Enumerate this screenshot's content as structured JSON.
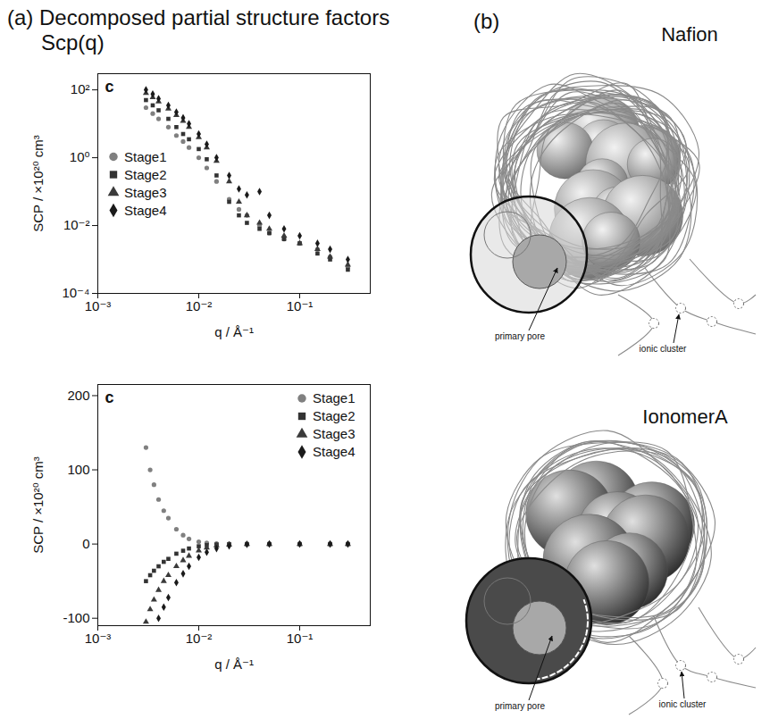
{
  "figure": {
    "title": "(a) Decomposed partial structure factors Scp(q)",
    "panel_b": {
      "label": "(b)",
      "diagrams": [
        {
          "name": "Nafion",
          "primary_pore": "primary pore",
          "ionic_cluster": "ionic cluster"
        },
        {
          "name": "IonomerA",
          "primary_pore": "primary pore",
          "ionic_cluster": "ionic cluster"
        }
      ]
    }
  },
  "chart_data": [
    {
      "type": "scatter",
      "title": "c",
      "log": true,
      "grid": false,
      "legend": "left",
      "x_label": "q / Å⁻¹",
      "y_label": "SCP / ×10²⁰ cm³",
      "xlim": [
        0.001,
        0.5
      ],
      "ylim": [
        0.0001,
        300
      ],
      "xticks": [
        {
          "value": 0.001,
          "label": "10⁻³"
        },
        {
          "value": 0.01,
          "label": "10⁻²"
        },
        {
          "value": 0.1,
          "label": "10⁻¹"
        }
      ],
      "yticks": [
        {
          "value": 0.0001,
          "label": "10⁻⁴"
        },
        {
          "value": 0.01,
          "label": "10⁻²"
        },
        {
          "value": 1,
          "label": "10⁰"
        },
        {
          "value": 100,
          "label": "10²"
        }
      ],
      "series": [
        {
          "name": "Stage1",
          "color": "#808080",
          "marker": "circle",
          "x": [
            0.003,
            0.0035,
            0.004,
            0.005,
            0.006,
            0.007,
            0.008,
            0.01,
            0.012,
            0.015,
            0.02,
            0.025,
            0.03,
            0.04,
            0.05,
            0.07,
            0.1,
            0.15,
            0.2,
            0.3
          ],
          "values": [
            30,
            20,
            14,
            8,
            4.5,
            3,
            2,
            1,
            0.5,
            0.2,
            0.06,
            0.03,
            0.02,
            0.01,
            0.006,
            0.004,
            0.003,
            0.002,
            0.0012,
            0.0006
          ]
        },
        {
          "name": "Stage2",
          "color": "#333333",
          "marker": "square",
          "x": [
            0.003,
            0.0035,
            0.004,
            0.005,
            0.006,
            0.007,
            0.008,
            0.01,
            0.012,
            0.015,
            0.02,
            0.025,
            0.03,
            0.04,
            0.05,
            0.07,
            0.1,
            0.15,
            0.2,
            0.3
          ],
          "values": [
            50,
            35,
            25,
            14,
            8,
            5,
            3.5,
            1.8,
            0.9,
            0.3,
            0.05,
            0.02,
            0.012,
            0.008,
            0.006,
            0.004,
            0.003,
            0.0015,
            0.001,
            0.0005
          ]
        },
        {
          "name": "Stage3",
          "color": "#3a3a3a",
          "marker": "triangle",
          "x": [
            0.003,
            0.0035,
            0.004,
            0.005,
            0.006,
            0.007,
            0.008,
            0.01,
            0.012,
            0.015,
            0.02,
            0.025,
            0.03,
            0.04,
            0.05,
            0.07,
            0.1,
            0.15,
            0.2,
            0.3
          ],
          "values": [
            80,
            60,
            45,
            28,
            18,
            12,
            8,
            4,
            2,
            0.8,
            0.2,
            0.05,
            0.02,
            0.012,
            0.008,
            0.005,
            0.003,
            0.002,
            0.0012,
            0.0007
          ]
        },
        {
          "name": "Stage4",
          "color": "#1a1a1a",
          "marker": "diamond",
          "x": [
            0.003,
            0.0035,
            0.004,
            0.005,
            0.006,
            0.007,
            0.008,
            0.01,
            0.012,
            0.015,
            0.02,
            0.025,
            0.03,
            0.04,
            0.05,
            0.07,
            0.1,
            0.15,
            0.2,
            0.3
          ],
          "values": [
            100,
            75,
            55,
            35,
            22,
            15,
            10,
            5,
            2.5,
            1,
            0.3,
            0.12,
            0.08,
            0.1,
            0.02,
            0.008,
            0.005,
            0.003,
            0.002,
            0.001
          ]
        }
      ]
    },
    {
      "type": "scatter",
      "title": "c",
      "log": "x",
      "grid": false,
      "legend": "top-right",
      "x_label": "q / Å⁻¹",
      "y_label": "SCP / ×10²⁰ cm³",
      "xlim": [
        0.001,
        0.5
      ],
      "ylim": [
        -110,
        215
      ],
      "xticks": [
        {
          "value": 0.001,
          "label": "10⁻³"
        },
        {
          "value": 0.01,
          "label": "10⁻²"
        },
        {
          "value": 0.1,
          "label": "10⁻¹"
        }
      ],
      "yticks": [
        -100,
        0,
        100,
        200
      ],
      "series": [
        {
          "name": "Stage1",
          "color": "#808080",
          "marker": "circle",
          "x": [
            0.003,
            0.0033,
            0.0036,
            0.004,
            0.0045,
            0.005,
            0.006,
            0.007,
            0.008,
            0.01,
            0.012,
            0.015,
            0.02,
            0.03,
            0.05,
            0.1,
            0.2,
            0.3
          ],
          "values": [
            130,
            100,
            80,
            60,
            45,
            35,
            20,
            12,
            7,
            3,
            1.5,
            0.5,
            0.2,
            0,
            0,
            0,
            0,
            0
          ]
        },
        {
          "name": "Stage2",
          "color": "#333333",
          "marker": "square",
          "x": [
            0.003,
            0.0033,
            0.0036,
            0.004,
            0.0045,
            0.005,
            0.006,
            0.007,
            0.008,
            0.01,
            0.012,
            0.015,
            0.02,
            0.03,
            0.05,
            0.1,
            0.2,
            0.3
          ],
          "values": [
            -50,
            -42,
            -36,
            -30,
            -24,
            -20,
            -13,
            -9,
            -6,
            -3,
            -1.5,
            -0.7,
            -0.3,
            0,
            0,
            0,
            0,
            0
          ]
        },
        {
          "name": "Stage3",
          "color": "#3a3a3a",
          "marker": "triangle",
          "x": [
            0.003,
            0.0033,
            0.0036,
            0.004,
            0.0045,
            0.005,
            0.006,
            0.007,
            0.008,
            0.01,
            0.012,
            0.015,
            0.02,
            0.03,
            0.05,
            0.1,
            0.2,
            0.3
          ],
          "values": [
            -105,
            -88,
            -75,
            -62,
            -50,
            -42,
            -30,
            -22,
            -16,
            -9,
            -5,
            -2,
            -0.8,
            -0.2,
            0,
            0,
            0,
            0
          ]
        },
        {
          "name": "Stage4",
          "color": "#1a1a1a",
          "marker": "diamond",
          "x": [
            0.004,
            0.0045,
            0.005,
            0.006,
            0.007,
            0.008,
            0.01,
            0.012,
            0.015,
            0.02,
            0.03,
            0.05,
            0.1,
            0.2,
            0.3
          ],
          "values": [
            -100,
            -85,
            -72,
            -52,
            -40,
            -30,
            -18,
            -11,
            -6,
            -2.5,
            -0.5,
            0,
            0,
            0,
            0
          ]
        }
      ]
    }
  ]
}
